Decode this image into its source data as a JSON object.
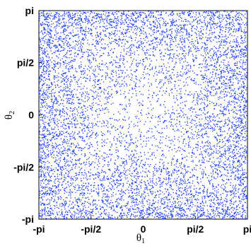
{
  "chart_data": {
    "type": "scatter",
    "title": "",
    "xlabel": {
      "symbol": "θ",
      "subscript": "1"
    },
    "ylabel": {
      "symbol": "θ",
      "subscript": "2"
    },
    "xlim": [
      -3.14159,
      3.14159
    ],
    "ylim": [
      -3.14159,
      3.14159
    ],
    "xticks": [
      {
        "value": -3.14159,
        "label": "-pi"
      },
      {
        "value": -1.5708,
        "label": "-pi/2"
      },
      {
        "value": 0,
        "label": "0"
      },
      {
        "value": 1.5708,
        "label": "pi/2"
      },
      {
        "value": 3.14159,
        "label": "pi"
      }
    ],
    "yticks": [
      {
        "value": -3.14159,
        "label": "-pi"
      },
      {
        "value": -1.5708,
        "label": "-pi/2"
      },
      {
        "value": 0,
        "label": "0"
      },
      {
        "value": 1.5708,
        "label": "pi/2"
      },
      {
        "value": 3.14159,
        "label": "pi"
      }
    ],
    "grid": false,
    "legend": "none",
    "point_color": "#1f3fff",
    "series": [
      {
        "point_density": "dense near corners and edges, sparser near the centre",
        "points_sample": [
          [
            -3.0,
            3.0
          ],
          [
            -2.6,
            2.8
          ],
          [
            2.8,
            2.9
          ],
          [
            3.0,
            -3.0
          ],
          [
            -2.9,
            -2.7
          ],
          [
            2.5,
            -2.6
          ],
          [
            -1.0,
            2.4
          ],
          [
            1.2,
            2.2
          ],
          [
            -2.3,
            0.6
          ],
          [
            2.4,
            -0.5
          ],
          [
            0.3,
            0.2
          ],
          [
            -0.4,
            -0.6
          ],
          [
            1.6,
            1.7
          ],
          [
            -1.6,
            -1.5
          ],
          [
            0.0,
            2.9
          ],
          [
            0.0,
            -2.9
          ],
          [
            -2.0,
            -1.2
          ],
          [
            2.1,
            1.3
          ],
          [
            -0.8,
            0.9
          ],
          [
            0.9,
            -0.8
          ]
        ]
      }
    ]
  }
}
